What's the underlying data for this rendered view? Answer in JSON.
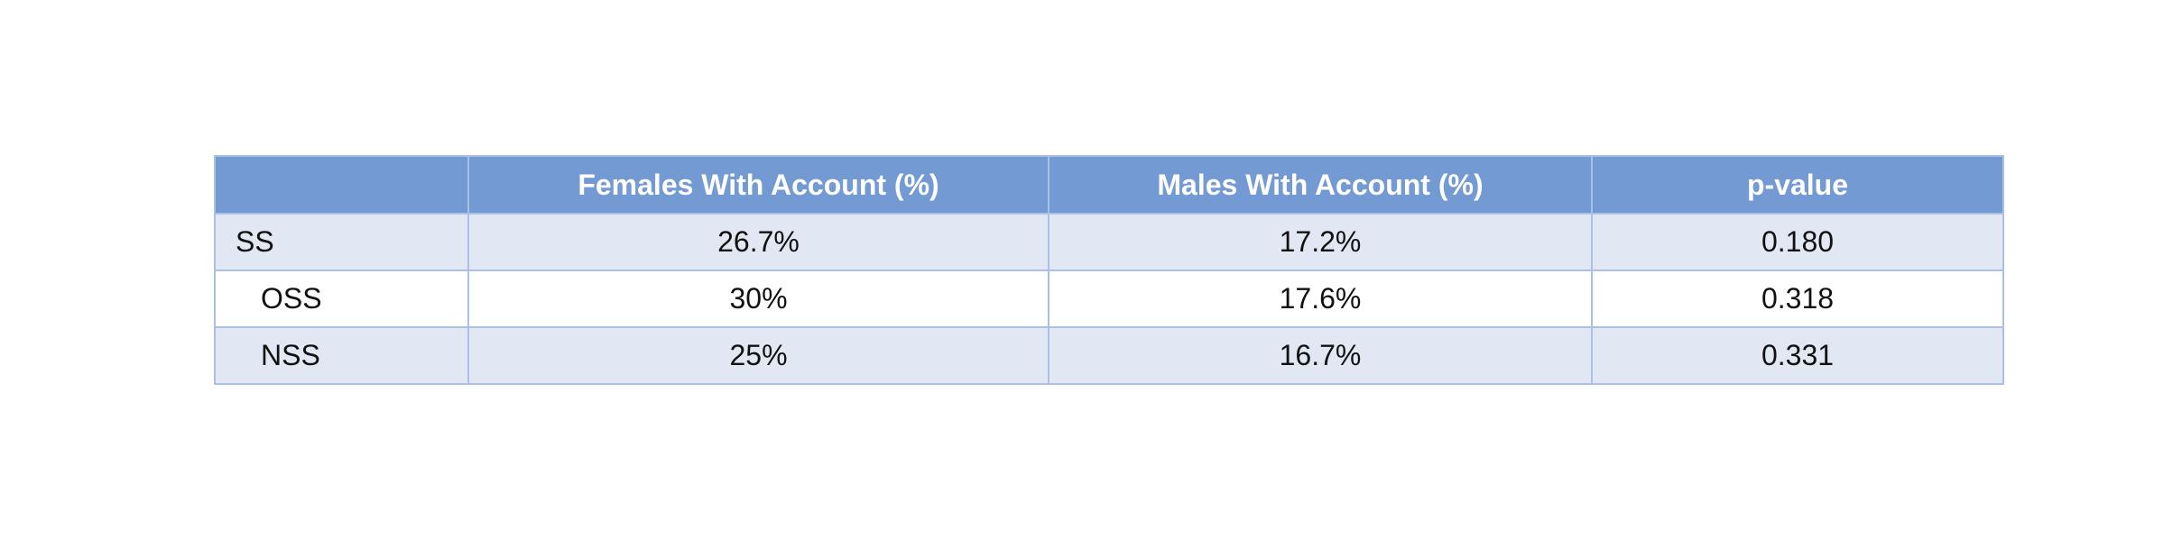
{
  "table": {
    "headers": [
      "",
      "Females With Account (%)",
      "Males With Account (%)",
      "p-value"
    ],
    "rows": [
      {
        "label": "SS",
        "females": "26.7%",
        "males": "17.2%",
        "p_value": "0.180"
      },
      {
        "label": "OSS",
        "females": "30%",
        "males": "17.6%",
        "p_value": "0.318"
      },
      {
        "label": "NSS",
        "females": "25%",
        "males": "16.7%",
        "p_value": "0.331"
      }
    ]
  },
  "colors": {
    "header_bg": "#739ad3",
    "header_text": "#ffffff",
    "shaded_row_bg": "#e2e8f3",
    "border": "#a9c1e6"
  }
}
